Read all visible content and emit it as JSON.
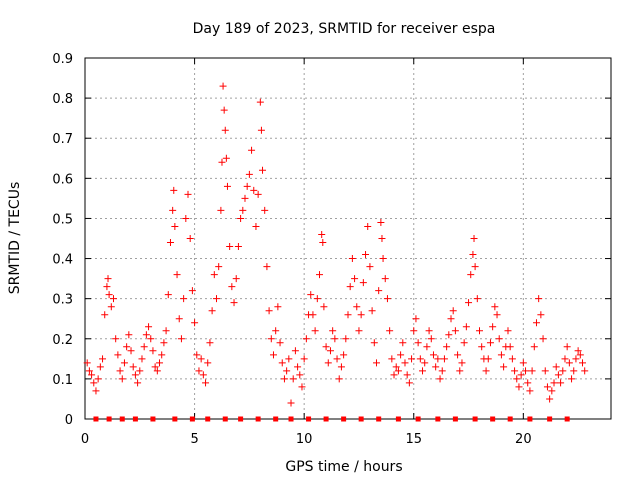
{
  "chart_data": {
    "type": "scatter",
    "title": "Day 189 of 2023, SRMTID for receiver espa",
    "xlabel": "GPS time / hours",
    "ylabel": "SRMTID / TECUs",
    "xlim": [
      0,
      24
    ],
    "ylim": [
      0,
      0.9
    ],
    "x_ticks": [
      {
        "value": 0,
        "label": "0"
      },
      {
        "value": 5,
        "label": "5"
      },
      {
        "value": 10,
        "label": "10"
      },
      {
        "value": 15,
        "label": "15"
      },
      {
        "value": 20,
        "label": "20"
      }
    ],
    "y_ticks": [
      {
        "value": 0,
        "label": "0"
      },
      {
        "value": 0.1,
        "label": "0.1"
      },
      {
        "value": 0.2,
        "label": "0.2"
      },
      {
        "value": 0.3,
        "label": "0.3"
      },
      {
        "value": 0.4,
        "label": "0.4"
      },
      {
        "value": 0.5,
        "label": "0.5"
      },
      {
        "value": 0.6,
        "label": "0.6"
      },
      {
        "value": 0.7,
        "label": "0.7"
      },
      {
        "value": 0.8,
        "label": "0.8"
      },
      {
        "value": 0.9,
        "label": "0.9"
      }
    ],
    "grid": true,
    "marker": "plus",
    "color": "#ff0000",
    "baseline_marker": "square",
    "baseline_x": [
      0.5,
      1.1,
      1.7,
      2.3,
      3.1,
      4.1,
      4.9,
      5.6,
      6.4,
      7.1,
      7.9,
      8.7,
      9.4,
      10.2,
      11.0,
      11.8,
      12.6,
      13.4,
      14.3,
      15.2,
      16.1,
      16.9,
      17.8,
      18.6,
      19.4,
      20.3,
      21.2,
      22.0
    ],
    "series": [
      {
        "name": "SRMTID",
        "points": [
          [
            0.1,
            0.14
          ],
          [
            0.2,
            0.12
          ],
          [
            0.3,
            0.11
          ],
          [
            0.4,
            0.09
          ],
          [
            0.5,
            0.07
          ],
          [
            0.6,
            0.1
          ],
          [
            0.7,
            0.13
          ],
          [
            0.8,
            0.15
          ],
          [
            0.9,
            0.26
          ],
          [
            1.0,
            0.33
          ],
          [
            1.05,
            0.35
          ],
          [
            1.1,
            0.31
          ],
          [
            1.2,
            0.28
          ],
          [
            1.3,
            0.3
          ],
          [
            1.4,
            0.2
          ],
          [
            1.5,
            0.16
          ],
          [
            1.6,
            0.12
          ],
          [
            1.7,
            0.1
          ],
          [
            1.8,
            0.14
          ],
          [
            1.9,
            0.18
          ],
          [
            2.0,
            0.21
          ],
          [
            2.1,
            0.17
          ],
          [
            2.2,
            0.13
          ],
          [
            2.3,
            0.11
          ],
          [
            2.4,
            0.09
          ],
          [
            2.5,
            0.12
          ],
          [
            2.6,
            0.15
          ],
          [
            2.7,
            0.18
          ],
          [
            2.8,
            0.21
          ],
          [
            2.9,
            0.23
          ],
          [
            3.0,
            0.2
          ],
          [
            3.1,
            0.17
          ],
          [
            3.2,
            0.13
          ],
          [
            3.3,
            0.12
          ],
          [
            3.4,
            0.14
          ],
          [
            3.5,
            0.16
          ],
          [
            3.6,
            0.19
          ],
          [
            3.7,
            0.22
          ],
          [
            3.8,
            0.31
          ],
          [
            3.9,
            0.44
          ],
          [
            4.0,
            0.52
          ],
          [
            4.05,
            0.57
          ],
          [
            4.1,
            0.48
          ],
          [
            4.2,
            0.36
          ],
          [
            4.3,
            0.25
          ],
          [
            4.4,
            0.2
          ],
          [
            4.5,
            0.3
          ],
          [
            4.6,
            0.5
          ],
          [
            4.7,
            0.56
          ],
          [
            4.8,
            0.45
          ],
          [
            4.9,
            0.32
          ],
          [
            5.0,
            0.24
          ],
          [
            5.1,
            0.16
          ],
          [
            5.2,
            0.12
          ],
          [
            5.3,
            0.15
          ],
          [
            5.4,
            0.11
          ],
          [
            5.5,
            0.09
          ],
          [
            5.6,
            0.14
          ],
          [
            5.7,
            0.19
          ],
          [
            5.8,
            0.27
          ],
          [
            5.9,
            0.36
          ],
          [
            6.0,
            0.3
          ],
          [
            6.1,
            0.38
          ],
          [
            6.2,
            0.52
          ],
          [
            6.25,
            0.64
          ],
          [
            6.3,
            0.83
          ],
          [
            6.35,
            0.77
          ],
          [
            6.4,
            0.72
          ],
          [
            6.45,
            0.65
          ],
          [
            6.5,
            0.58
          ],
          [
            6.6,
            0.43
          ],
          [
            6.7,
            0.33
          ],
          [
            6.8,
            0.29
          ],
          [
            6.9,
            0.35
          ],
          [
            7.0,
            0.43
          ],
          [
            7.1,
            0.5
          ],
          [
            7.2,
            0.52
          ],
          [
            7.3,
            0.55
          ],
          [
            7.4,
            0.58
          ],
          [
            7.5,
            0.61
          ],
          [
            7.6,
            0.67
          ],
          [
            7.7,
            0.57
          ],
          [
            7.8,
            0.48
          ],
          [
            7.9,
            0.56
          ],
          [
            8.0,
            0.79
          ],
          [
            8.05,
            0.72
          ],
          [
            8.1,
            0.62
          ],
          [
            8.2,
            0.52
          ],
          [
            8.3,
            0.38
          ],
          [
            8.4,
            0.27
          ],
          [
            8.5,
            0.2
          ],
          [
            8.6,
            0.16
          ],
          [
            8.7,
            0.22
          ],
          [
            8.8,
            0.28
          ],
          [
            8.9,
            0.19
          ],
          [
            9.0,
            0.14
          ],
          [
            9.1,
            0.1
          ],
          [
            9.2,
            0.12
          ],
          [
            9.3,
            0.15
          ],
          [
            9.4,
            0.04
          ],
          [
            9.5,
            0.1
          ],
          [
            9.6,
            0.17
          ],
          [
            9.7,
            0.13
          ],
          [
            9.8,
            0.11
          ],
          [
            9.9,
            0.08
          ],
          [
            10.0,
            0.15
          ],
          [
            10.1,
            0.2
          ],
          [
            10.2,
            0.26
          ],
          [
            10.3,
            0.31
          ],
          [
            10.4,
            0.26
          ],
          [
            10.5,
            0.22
          ],
          [
            10.6,
            0.3
          ],
          [
            10.7,
            0.36
          ],
          [
            10.8,
            0.46
          ],
          [
            10.85,
            0.44
          ],
          [
            10.9,
            0.28
          ],
          [
            11.0,
            0.18
          ],
          [
            11.1,
            0.14
          ],
          [
            11.2,
            0.17
          ],
          [
            11.3,
            0.22
          ],
          [
            11.4,
            0.2
          ],
          [
            11.5,
            0.15
          ],
          [
            11.6,
            0.1
          ],
          [
            11.7,
            0.13
          ],
          [
            11.8,
            0.16
          ],
          [
            11.9,
            0.2
          ],
          [
            12.0,
            0.26
          ],
          [
            12.1,
            0.33
          ],
          [
            12.2,
            0.4
          ],
          [
            12.3,
            0.35
          ],
          [
            12.4,
            0.28
          ],
          [
            12.5,
            0.22
          ],
          [
            12.6,
            0.26
          ],
          [
            12.7,
            0.34
          ],
          [
            12.8,
            0.41
          ],
          [
            12.9,
            0.48
          ],
          [
            13.0,
            0.38
          ],
          [
            13.1,
            0.27
          ],
          [
            13.2,
            0.19
          ],
          [
            13.3,
            0.14
          ],
          [
            13.4,
            0.32
          ],
          [
            13.5,
            0.49
          ],
          [
            13.55,
            0.45
          ],
          [
            13.6,
            0.4
          ],
          [
            13.7,
            0.35
          ],
          [
            13.8,
            0.3
          ],
          [
            13.9,
            0.22
          ],
          [
            14.0,
            0.15
          ],
          [
            14.1,
            0.11
          ],
          [
            14.2,
            0.13
          ],
          [
            14.3,
            0.12
          ],
          [
            14.4,
            0.16
          ],
          [
            14.5,
            0.19
          ],
          [
            14.6,
            0.14
          ],
          [
            14.7,
            0.11
          ],
          [
            14.8,
            0.09
          ],
          [
            14.9,
            0.15
          ],
          [
            15.0,
            0.22
          ],
          [
            15.1,
            0.25
          ],
          [
            15.2,
            0.19
          ],
          [
            15.3,
            0.15
          ],
          [
            15.4,
            0.12
          ],
          [
            15.5,
            0.14
          ],
          [
            15.6,
            0.18
          ],
          [
            15.7,
            0.22
          ],
          [
            15.8,
            0.2
          ],
          [
            15.9,
            0.16
          ],
          [
            16.0,
            0.13
          ],
          [
            16.1,
            0.15
          ],
          [
            16.2,
            0.1
          ],
          [
            16.3,
            0.12
          ],
          [
            16.4,
            0.15
          ],
          [
            16.5,
            0.18
          ],
          [
            16.6,
            0.21
          ],
          [
            16.7,
            0.25
          ],
          [
            16.8,
            0.27
          ],
          [
            16.9,
            0.22
          ],
          [
            17.0,
            0.16
          ],
          [
            17.1,
            0.12
          ],
          [
            17.2,
            0.14
          ],
          [
            17.3,
            0.19
          ],
          [
            17.4,
            0.23
          ],
          [
            17.5,
            0.29
          ],
          [
            17.6,
            0.36
          ],
          [
            17.7,
            0.41
          ],
          [
            17.75,
            0.45
          ],
          [
            17.8,
            0.38
          ],
          [
            17.9,
            0.3
          ],
          [
            18.0,
            0.22
          ],
          [
            18.1,
            0.18
          ],
          [
            18.2,
            0.15
          ],
          [
            18.3,
            0.12
          ],
          [
            18.4,
            0.15
          ],
          [
            18.5,
            0.19
          ],
          [
            18.6,
            0.23
          ],
          [
            18.7,
            0.28
          ],
          [
            18.8,
            0.26
          ],
          [
            18.9,
            0.2
          ],
          [
            19.0,
            0.16
          ],
          [
            19.1,
            0.13
          ],
          [
            19.2,
            0.18
          ],
          [
            19.3,
            0.22
          ],
          [
            19.4,
            0.18
          ],
          [
            19.5,
            0.15
          ],
          [
            19.6,
            0.12
          ],
          [
            19.7,
            0.1
          ],
          [
            19.8,
            0.08
          ],
          [
            19.9,
            0.11
          ],
          [
            20.0,
            0.14
          ],
          [
            20.1,
            0.12
          ],
          [
            20.2,
            0.09
          ],
          [
            20.3,
            0.07
          ],
          [
            20.4,
            0.12
          ],
          [
            20.5,
            0.18
          ],
          [
            20.6,
            0.24
          ],
          [
            20.7,
            0.3
          ],
          [
            20.8,
            0.26
          ],
          [
            20.9,
            0.2
          ],
          [
            21.0,
            0.12
          ],
          [
            21.1,
            0.08
          ],
          [
            21.2,
            0.05
          ],
          [
            21.3,
            0.07
          ],
          [
            21.4,
            0.09
          ],
          [
            21.5,
            0.13
          ],
          [
            21.6,
            0.11
          ],
          [
            21.7,
            0.09
          ],
          [
            21.8,
            0.12
          ],
          [
            21.9,
            0.15
          ],
          [
            22.0,
            0.18
          ],
          [
            22.1,
            0.14
          ],
          [
            22.2,
            0.1
          ],
          [
            22.3,
            0.12
          ],
          [
            22.4,
            0.15
          ],
          [
            22.5,
            0.17
          ],
          [
            22.6,
            0.16
          ],
          [
            22.7,
            0.14
          ],
          [
            22.8,
            0.12
          ]
        ]
      }
    ]
  }
}
